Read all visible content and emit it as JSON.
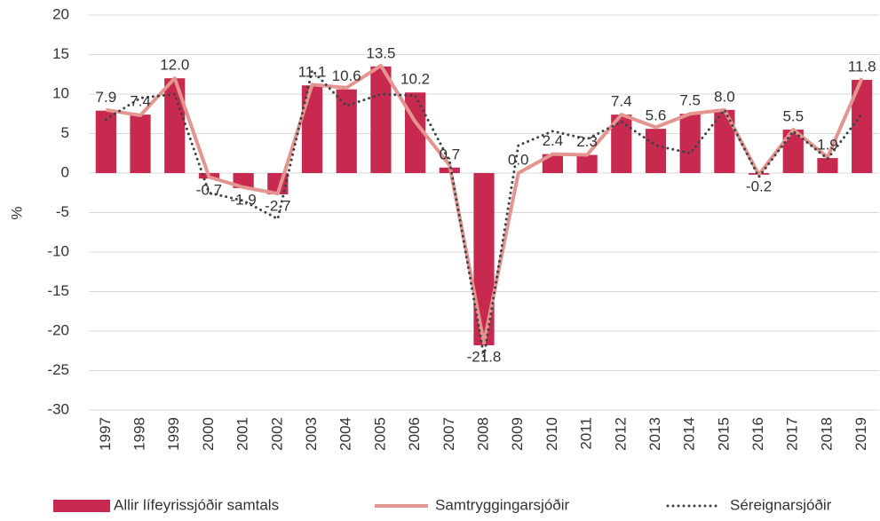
{
  "chart_data": {
    "type": "bar",
    "ylabel": "%",
    "categories": [
      "1997",
      "1998",
      "1999",
      "2000",
      "2001",
      "2002",
      "2003",
      "2004",
      "2005",
      "2006",
      "2007",
      "2008",
      "2009",
      "2010",
      "2011",
      "2012",
      "2013",
      "2014",
      "2015",
      "2016",
      "2017",
      "2018",
      "2019"
    ],
    "series": [
      {
        "name": "Allir lífeyrissjóðir samtals",
        "type": "bar",
        "color": "#c8294f",
        "values": [
          7.9,
          7.4,
          12.0,
          -0.7,
          -1.9,
          -2.7,
          11.1,
          10.6,
          13.5,
          10.2,
          0.7,
          -21.8,
          0.0,
          2.4,
          2.3,
          7.4,
          5.6,
          7.5,
          8.0,
          -0.2,
          5.5,
          1.9,
          11.8
        ],
        "value_labels": [
          "7.9",
          "7.4",
          "12.0",
          "-0.7",
          "-1.9",
          "-2.7",
          "11.1",
          "10.6",
          "13.5",
          "10.2",
          "0.7",
          "-21.8",
          "0.0",
          "2.4",
          "2.3",
          "7.4",
          "5.6",
          "7.5",
          "8.0",
          "-0.2",
          "5.5",
          "1.9",
          "11.8"
        ]
      },
      {
        "name": "Samtryggingarsjóðir",
        "type": "line",
        "color": "#e4958f",
        "values": [
          8.0,
          7.3,
          12.0,
          -0.5,
          -1.8,
          -2.6,
          11.2,
          10.8,
          13.6,
          6.5,
          1.0,
          -21.5,
          0.0,
          2.4,
          2.3,
          7.4,
          5.8,
          7.5,
          8.0,
          -0.2,
          5.5,
          2.0,
          12.0
        ]
      },
      {
        "name": "Séreignarsjóðir",
        "type": "dotted",
        "color": "#3d4447",
        "values": [
          6.8,
          9.5,
          10.0,
          -2.5,
          -3.5,
          -5.8,
          13.0,
          8.5,
          10.0,
          9.8,
          1.5,
          -23.2,
          3.5,
          5.3,
          4.3,
          6.5,
          3.5,
          2.5,
          8.0,
          -0.5,
          5.3,
          1.8,
          7.5
        ]
      }
    ],
    "ylim": [
      -30,
      20
    ],
    "yticks": [
      -30,
      -25,
      -20,
      -15,
      -10,
      -5,
      0,
      5,
      10,
      15,
      20
    ],
    "grid": true,
    "legend": "bottom"
  }
}
